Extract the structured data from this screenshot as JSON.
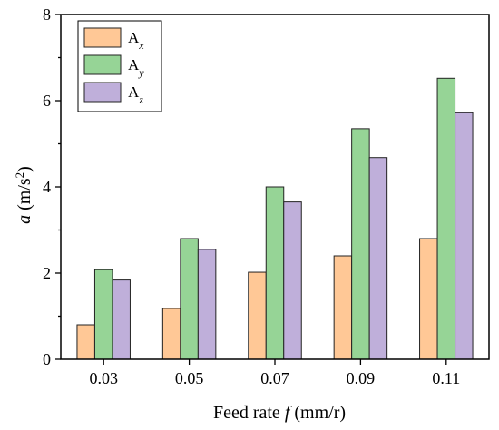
{
  "chart_data": {
    "type": "bar",
    "categories": [
      "0.03",
      "0.05",
      "0.07",
      "0.09",
      "0.11"
    ],
    "series": [
      {
        "name": "Ax",
        "label_main": "A",
        "label_sub": "x",
        "color": "#FFC896",
        "values": [
          0.8,
          1.18,
          2.02,
          2.4,
          2.8
        ]
      },
      {
        "name": "Ay",
        "label_main": "A",
        "label_sub": "y",
        "color": "#96D496",
        "values": [
          2.08,
          2.8,
          4.0,
          5.35,
          6.52
        ]
      },
      {
        "name": "Az",
        "label_main": "A",
        "label_sub": "z",
        "color": "#BFAFDA",
        "values": [
          1.84,
          2.55,
          3.65,
          4.68,
          5.72
        ]
      }
    ],
    "xlabel": {
      "prefix": "Feed rate ",
      "var": "f",
      "suffix": " (mm/r)"
    },
    "ylabel": {
      "var": "a",
      "unit_prefix": " (m/s",
      "sup": "2",
      "unit_suffix": ")"
    },
    "ylim": [
      0,
      8
    ],
    "yticks": [
      "0",
      "2",
      "4",
      "6",
      "8"
    ],
    "grid": false,
    "legend_position": "top-left"
  }
}
